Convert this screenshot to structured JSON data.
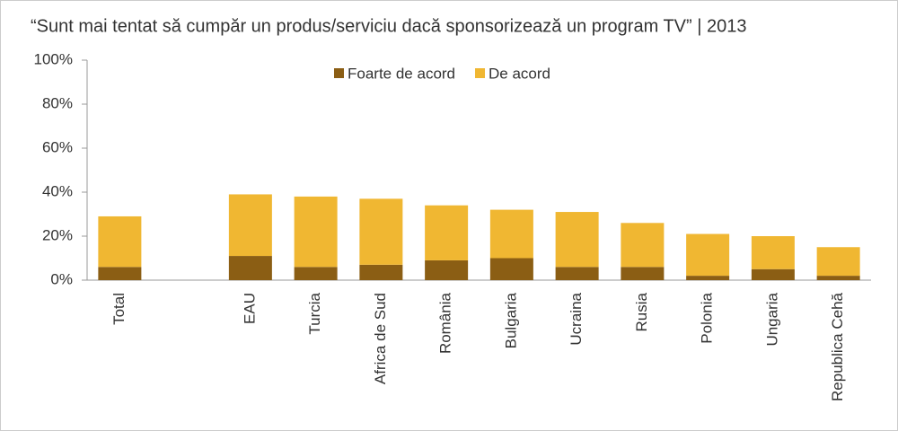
{
  "chart_data": {
    "type": "stacked_bar",
    "title": "“Sunt mai tentat să cumpăr un produs/serviciu dacă sponsorizează un program TV” | 2013",
    "categories": [
      "Total",
      null,
      "EAU",
      "Turcia",
      "Africa de Sud",
      "România",
      "Bulgaria",
      "Ucraina",
      "Rusia",
      "Polonia",
      "Ungaria",
      "Republica Cehă"
    ],
    "series": [
      {
        "name": "Foarte de acord",
        "color": "#8b5e14",
        "values": [
          6,
          null,
          11,
          6,
          7,
          9,
          10,
          6,
          6,
          2,
          5,
          2
        ]
      },
      {
        "name": "De acord",
        "color": "#f0b732",
        "values": [
          23,
          null,
          28,
          32,
          30,
          25,
          22,
          25,
          20,
          19,
          15,
          13
        ]
      }
    ],
    "ylim": [
      0,
      100
    ],
    "yticks": [
      {
        "value": 0,
        "label": "0%"
      },
      {
        "value": 20,
        "label": "20%"
      },
      {
        "value": 40,
        "label": "40%"
      },
      {
        "value": 60,
        "label": "60%"
      },
      {
        "value": 80,
        "label": "80%"
      },
      {
        "value": 100,
        "label": "100%"
      }
    ],
    "legend": "top"
  }
}
